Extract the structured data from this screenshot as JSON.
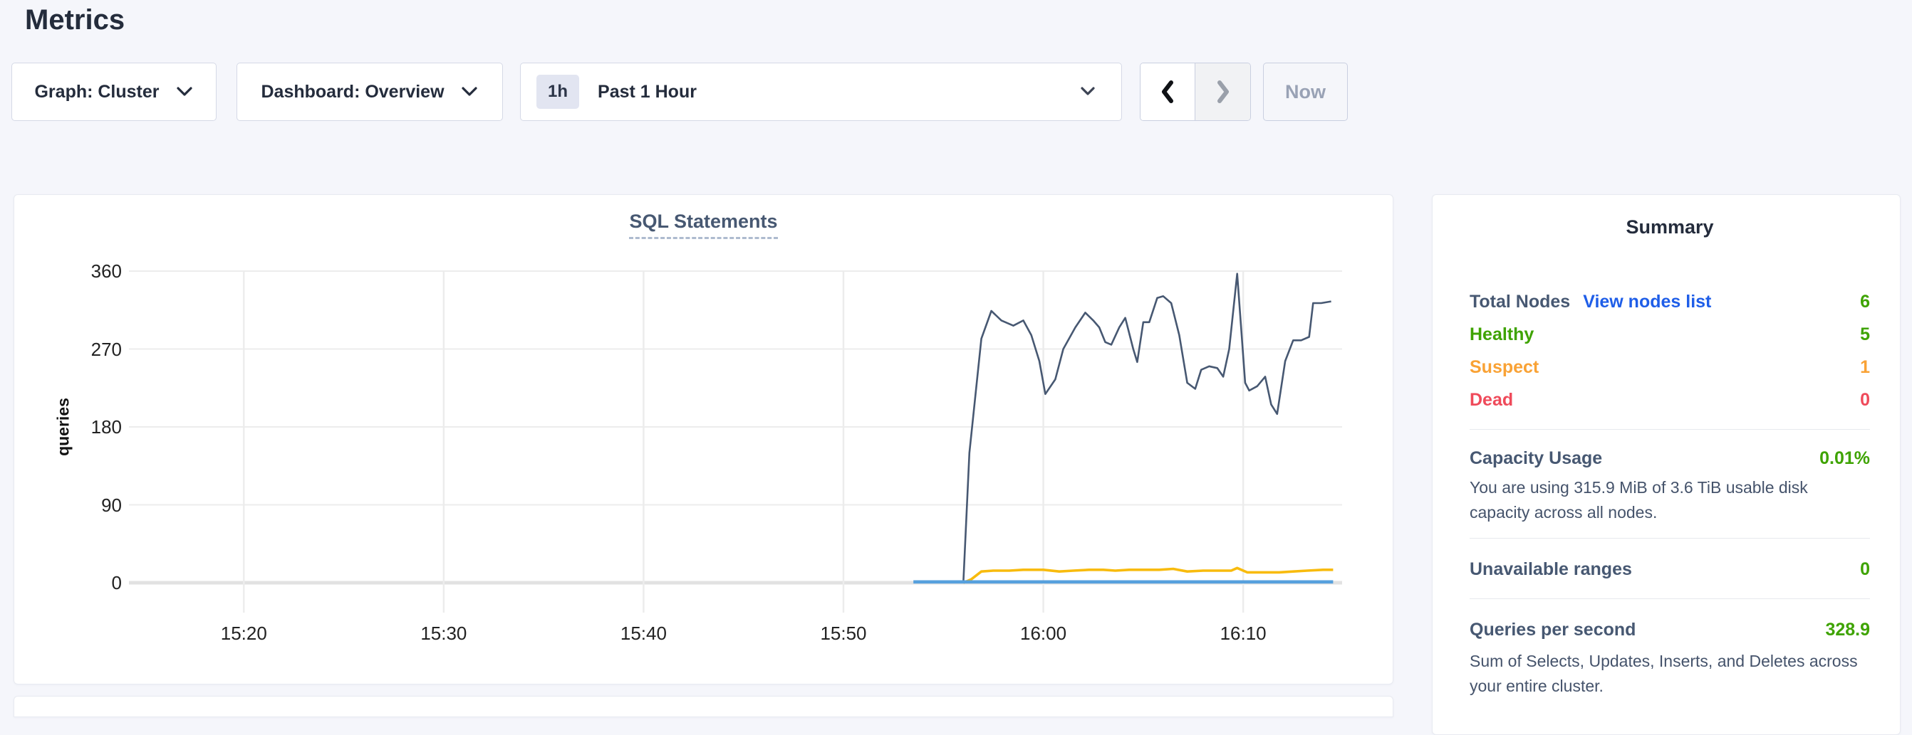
{
  "page": {
    "title": "Metrics"
  },
  "toolbar": {
    "graph_selector_label": "Graph: Cluster",
    "dashboard_selector_label": "Dashboard: Overview",
    "time_window_badge": "1h",
    "time_window_label": "Past 1 Hour",
    "now_button_label": "Now"
  },
  "summary": {
    "title": "Summary",
    "total_nodes_label": "Total Nodes",
    "view_nodes_link": "View nodes list",
    "total_nodes_value": "6",
    "healthy_label": "Healthy",
    "healthy_value": "5",
    "suspect_label": "Suspect",
    "suspect_value": "1",
    "dead_label": "Dead",
    "dead_value": "0",
    "capacity_label": "Capacity Usage",
    "capacity_value": "0.01%",
    "capacity_desc": "You are using 315.9 MiB of 3.6 TiB usable disk capacity across all nodes.",
    "unavailable_label": "Unavailable ranges",
    "unavailable_value": "0",
    "qps_label": "Queries per second",
    "qps_value": "328.9",
    "qps_desc": "Sum of Selects, Updates, Inserts, and Deletes across your entire cluster.",
    "colors": {
      "green": "#3ea300",
      "orange": "#f9a235",
      "red": "#ef4a5a",
      "link": "#1f5ee8"
    }
  },
  "chart_data": {
    "type": "line",
    "title": "SQL Statements",
    "ylabel": "queries",
    "grid": true,
    "legend": "none",
    "y_ticks": [
      0,
      90,
      180,
      270,
      360
    ],
    "y_domain": [
      0,
      360
    ],
    "x_domain_minutes_after_1500": [
      19.8,
      75.0
    ],
    "x_ticks": [
      {
        "label": "15:20",
        "t": 20
      },
      {
        "label": "15:30",
        "t": 30
      },
      {
        "label": "15:40",
        "t": 40
      },
      {
        "label": "15:50",
        "t": 50
      },
      {
        "label": "16:00",
        "t": 60
      },
      {
        "label": "16:10",
        "t": 70
      }
    ],
    "series": [
      {
        "name": "series-navy",
        "color": "#475872",
        "width": 2.6,
        "points": [
          [
            56.0,
            0
          ],
          [
            56.3,
            150
          ],
          [
            56.9,
            282
          ],
          [
            57.4,
            314
          ],
          [
            57.9,
            303
          ],
          [
            58.5,
            297
          ],
          [
            59.0,
            303
          ],
          [
            59.4,
            286
          ],
          [
            59.8,
            256
          ],
          [
            60.1,
            218
          ],
          [
            60.6,
            235
          ],
          [
            61.0,
            270
          ],
          [
            61.6,
            295
          ],
          [
            62.1,
            312
          ],
          [
            62.5,
            303
          ],
          [
            62.8,
            295
          ],
          [
            63.1,
            278
          ],
          [
            63.4,
            275
          ],
          [
            63.8,
            295
          ],
          [
            64.1,
            306
          ],
          [
            64.5,
            270
          ],
          [
            64.7,
            255
          ],
          [
            65.0,
            301
          ],
          [
            65.3,
            301
          ],
          [
            65.7,
            329
          ],
          [
            66.0,
            331
          ],
          [
            66.4,
            323
          ],
          [
            66.8,
            286
          ],
          [
            67.2,
            231
          ],
          [
            67.6,
            224
          ],
          [
            67.9,
            246
          ],
          [
            68.3,
            250
          ],
          [
            68.7,
            248
          ],
          [
            69.0,
            238
          ],
          [
            69.3,
            270
          ],
          [
            69.7,
            357
          ],
          [
            70.1,
            231
          ],
          [
            70.3,
            222
          ],
          [
            70.7,
            227
          ],
          [
            71.1,
            238
          ],
          [
            71.4,
            206
          ],
          [
            71.7,
            195
          ],
          [
            72.1,
            256
          ],
          [
            72.5,
            280
          ],
          [
            72.9,
            280
          ],
          [
            73.3,
            284
          ],
          [
            73.5,
            323
          ],
          [
            73.9,
            323
          ],
          [
            74.4,
            325
          ]
        ]
      },
      {
        "name": "series-yellow",
        "color": "#f8bb0d",
        "width": 3.6,
        "points": [
          [
            56.0,
            0
          ],
          [
            56.4,
            4
          ],
          [
            56.9,
            13
          ],
          [
            57.5,
            14
          ],
          [
            58.3,
            14
          ],
          [
            59.0,
            15
          ],
          [
            60.0,
            15
          ],
          [
            60.8,
            13
          ],
          [
            61.5,
            14
          ],
          [
            62.3,
            15
          ],
          [
            63.0,
            15
          ],
          [
            63.6,
            14
          ],
          [
            64.3,
            15
          ],
          [
            65.0,
            15
          ],
          [
            65.8,
            15
          ],
          [
            66.5,
            16
          ],
          [
            67.2,
            13
          ],
          [
            68.0,
            14
          ],
          [
            68.8,
            14
          ],
          [
            69.4,
            14
          ],
          [
            69.7,
            17
          ],
          [
            70.2,
            12
          ],
          [
            71.0,
            12
          ],
          [
            71.8,
            12
          ],
          [
            72.5,
            13
          ],
          [
            73.2,
            14
          ],
          [
            74.0,
            15
          ],
          [
            74.5,
            15
          ]
        ]
      },
      {
        "name": "series-blue",
        "color": "#56a0dd",
        "width": 4.6,
        "points": [
          [
            53.5,
            1
          ],
          [
            74.5,
            1
          ]
        ]
      }
    ]
  }
}
